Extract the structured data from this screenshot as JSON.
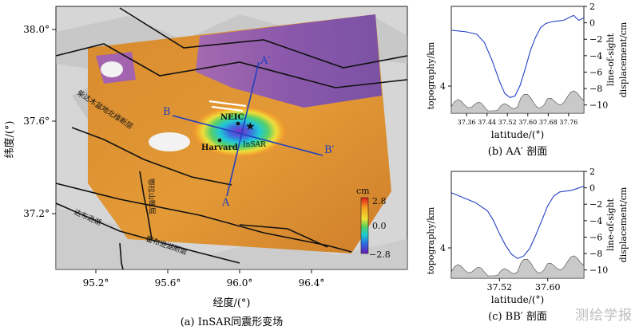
{
  "map": {
    "caption": "(a) InSAR同震形变场",
    "xlabel": "经度/(°)",
    "ylabel": "纬度/(°)",
    "xticks": [
      "95.2°",
      "95.6°",
      "96.0°",
      "96.4°"
    ],
    "yticks": [
      "38.0°",
      "37.6°",
      "37.2°"
    ],
    "colorbar": {
      "unit": "cm",
      "ticks": [
        "2.8",
        "0.0",
        "−2.8"
      ]
    },
    "labels": {
      "A_end": "A",
      "Aprime_end": "A′",
      "B_end": "B",
      "Bprime_end": "B′",
      "neic": "NEIC",
      "harvard": "Harvard",
      "insar": "InSAR",
      "fault_1": "柴达木盆地北缘断层",
      "fault_2": "鄂拉山断层",
      "fault_3": "达布逊湖",
      "fault_4": "霍布逊湖断层"
    }
  },
  "profile_aa": {
    "caption": "(b) AA′ 剖面",
    "xlabel": "latitude/(°)",
    "ylabel_left": "topography/km",
    "ylabel_right": "line-of-sight displacement/cm",
    "left_ticks": [
      "4"
    ],
    "right_ticks": [
      "2",
      "0",
      "−2",
      "−4",
      "−6",
      "−8",
      "−10"
    ],
    "xticks": [
      "37.36",
      "37.44",
      "37.52",
      "37.60",
      "37.68",
      "37.76"
    ]
  },
  "profile_bb": {
    "caption": "(c) BB′ 剖面",
    "xlabel": "latitude/(°)",
    "ylabel_left": "topography/km",
    "ylabel_right": "line-of-sight displacement/cm",
    "left_ticks": [
      "4"
    ],
    "right_ticks": [
      "2",
      "0",
      "−2",
      "−4",
      "−6",
      "−8",
      "−10"
    ],
    "xticks": [
      "37.52",
      "37.60"
    ]
  },
  "watermark": "测绘学报",
  "chart_data": [
    {
      "type": "line",
      "panel": "AA′",
      "xlabel": "latitude/(°)",
      "ylabel": "line-of-sight displacement/cm",
      "xlim": [
        37.3,
        37.82
      ],
      "ylim": [
        -11,
        2
      ],
      "series": [
        {
          "x": [
            37.3,
            37.36,
            37.4,
            37.43,
            37.46,
            37.49,
            37.51,
            37.53,
            37.55,
            37.57,
            37.59,
            37.61,
            37.63,
            37.65,
            37.67,
            37.69,
            37.71,
            37.74,
            37.76,
            37.78,
            37.8,
            37.82
          ],
          "y": [
            -0.9,
            -1.1,
            -1.4,
            -2.4,
            -4.6,
            -7.2,
            -8.6,
            -9.1,
            -8.9,
            -7.6,
            -5.6,
            -3.4,
            -1.8,
            -0.6,
            -0.1,
            0.1,
            0.2,
            0.3,
            0.6,
            0.9,
            0.3,
            0.6
          ]
        }
      ]
    },
    {
      "type": "line",
      "panel": "BB′",
      "xlabel": "latitude/(°)",
      "ylabel": "line-of-sight displacement/cm",
      "xlim": [
        37.44,
        37.66
      ],
      "ylim": [
        -11,
        2
      ],
      "series": [
        {
          "x": [
            37.44,
            37.46,
            37.48,
            37.5,
            37.51,
            37.52,
            37.53,
            37.54,
            37.55,
            37.56,
            37.57,
            37.58,
            37.59,
            37.6,
            37.61,
            37.62,
            37.64,
            37.66
          ],
          "y": [
            -0.6,
            -1.2,
            -1.8,
            -2.8,
            -4.0,
            -5.6,
            -7.0,
            -8.1,
            -8.6,
            -8.3,
            -7.4,
            -5.8,
            -4.0,
            -2.2,
            -1.0,
            -0.5,
            -0.3,
            0.2
          ]
        }
      ]
    }
  ]
}
